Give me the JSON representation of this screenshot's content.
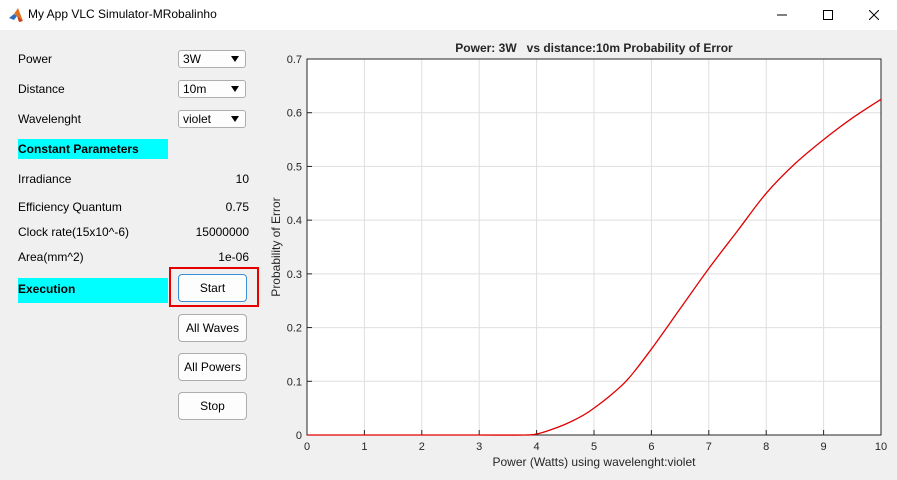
{
  "window": {
    "title": "My App VLC Simulator-MRobalinho",
    "controls": [
      "minimize-icon",
      "maximize-icon",
      "close-icon"
    ]
  },
  "controls": {
    "power": {
      "label": "Power",
      "value": "3W"
    },
    "distance": {
      "label": "Distance",
      "value": "10m"
    },
    "wavelength": {
      "label": "Wavelenght",
      "value": "violet"
    }
  },
  "constants": {
    "header": "Constant Parameters",
    "irradiance": {
      "label": "Irradiance",
      "value": "10"
    },
    "efficiency": {
      "label": "Efficiency Quantum",
      "value": "0.75"
    },
    "clock_rate": {
      "label": "Clock rate(15x10^-6)",
      "value": "15000000"
    },
    "area": {
      "label": "Area(mm^2)",
      "value": "1e-06"
    }
  },
  "execution": {
    "header": "Execution",
    "start": "Start",
    "all_waves": "All Waves",
    "all_powers": "All Powers",
    "stop": "Stop"
  },
  "colors": {
    "accent_bar": "#00ffff",
    "highlight": "#e60000",
    "line": "#e00000"
  },
  "chart_data": {
    "type": "line",
    "title": "Power: 3W   vs distance:10m Probability of Error",
    "xlabel": "Power (Watts) using wavelenght:violet",
    "ylabel": "Probability of Error",
    "xlim": [
      0,
      10
    ],
    "ylim": [
      0,
      0.7
    ],
    "xticks": [
      "0",
      "1",
      "2",
      "3",
      "4",
      "5",
      "6",
      "7",
      "8",
      "9",
      "10"
    ],
    "yticks": [
      "0",
      "0.1",
      "0.2",
      "0.3",
      "0.4",
      "0.5",
      "0.6",
      "0.7"
    ],
    "grid": true,
    "series": [
      {
        "x": [
          0,
          1,
          2,
          3,
          3.8,
          4.0,
          4.2,
          4.5,
          4.8,
          5.0,
          5.3,
          5.6,
          6.0,
          6.5,
          7.0,
          7.5,
          8.0,
          8.5,
          9.0,
          9.5,
          10.0
        ],
        "values": [
          0,
          0,
          0,
          0,
          0,
          0.002,
          0.008,
          0.02,
          0.036,
          0.05,
          0.075,
          0.105,
          0.16,
          0.235,
          0.31,
          0.38,
          0.45,
          0.505,
          0.55,
          0.59,
          0.625
        ]
      }
    ]
  }
}
